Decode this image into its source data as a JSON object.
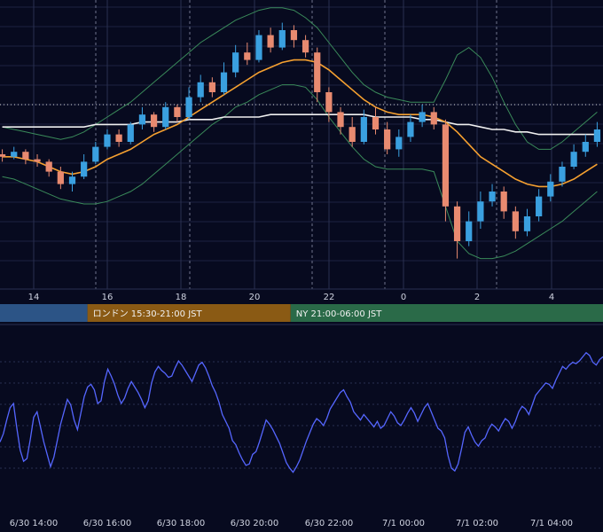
{
  "chart_data": [
    {
      "type": "candlestick",
      "x_ticks": [
        "14",
        "16",
        "18",
        "20",
        "22",
        "0",
        "2",
        "4"
      ],
      "y_range": [
        0,
        100
      ],
      "overlays": [
        "bollinger_bands",
        "moving_average_short",
        "moving_average_long"
      ],
      "candles": [
        [
          10,
          45,
          44,
          47,
          42
        ],
        [
          11,
          44,
          46,
          48,
          43
        ],
        [
          12,
          46,
          43,
          47,
          41
        ],
        [
          13,
          43,
          42,
          45,
          40
        ],
        [
          14,
          42,
          38,
          43,
          36
        ],
        [
          15,
          38,
          33,
          40,
          31
        ],
        [
          16,
          33,
          36,
          38,
          30
        ],
        [
          17,
          36,
          42,
          45,
          35
        ],
        [
          18,
          42,
          48,
          50,
          41
        ],
        [
          19,
          48,
          53,
          55,
          47
        ],
        [
          20,
          53,
          50,
          55,
          48
        ],
        [
          21,
          50,
          57,
          58,
          49
        ],
        [
          22,
          57,
          61,
          64,
          55
        ],
        [
          23,
          61,
          56,
          62,
          54
        ],
        [
          24,
          56,
          64,
          66,
          55
        ],
        [
          25,
          64,
          60,
          65,
          58
        ],
        [
          26,
          60,
          68,
          72,
          59
        ],
        [
          27,
          68,
          74,
          77,
          66
        ],
        [
          28,
          74,
          70,
          76,
          68
        ],
        [
          29,
          70,
          78,
          82,
          69
        ],
        [
          30,
          78,
          86,
          89,
          76
        ],
        [
          31,
          86,
          83,
          90,
          81
        ],
        [
          32,
          83,
          93,
          95,
          82
        ],
        [
          33,
          93,
          88,
          96,
          86
        ],
        [
          34,
          88,
          95,
          98,
          87
        ],
        [
          35,
          95,
          91,
          97,
          88
        ],
        [
          36,
          91,
          86,
          93,
          84
        ],
        [
          37,
          86,
          70,
          88,
          66
        ],
        [
          38,
          70,
          62,
          72,
          58
        ],
        [
          39,
          62,
          56,
          64,
          53
        ],
        [
          40,
          56,
          50,
          60,
          48
        ],
        [
          41,
          50,
          60,
          63,
          49
        ],
        [
          42,
          60,
          55,
          64,
          53
        ],
        [
          43,
          55,
          47,
          58,
          45
        ],
        [
          44,
          47,
          52,
          55,
          44
        ],
        [
          45,
          52,
          58,
          61,
          50
        ],
        [
          46,
          58,
          62,
          65,
          56
        ],
        [
          47,
          62,
          57,
          64,
          55
        ],
        [
          48,
          57,
          24,
          59,
          18
        ],
        [
          49,
          24,
          10,
          26,
          3
        ],
        [
          50,
          10,
          18,
          22,
          8
        ],
        [
          51,
          18,
          26,
          30,
          15
        ],
        [
          52,
          26,
          30,
          33,
          24
        ],
        [
          53,
          30,
          22,
          32,
          19
        ],
        [
          54,
          22,
          14,
          24,
          11
        ],
        [
          55,
          14,
          20,
          23,
          12
        ],
        [
          56,
          20,
          28,
          31,
          18
        ],
        [
          57,
          28,
          34,
          37,
          26
        ],
        [
          58,
          34,
          40,
          42,
          32
        ],
        [
          59,
          40,
          46,
          49,
          39
        ],
        [
          60,
          46,
          50,
          53,
          44
        ],
        [
          61,
          50,
          55,
          58,
          48
        ]
      ],
      "ma_short": [
        44,
        44,
        43,
        42,
        40,
        38,
        37,
        38,
        40,
        43,
        45,
        47,
        50,
        53,
        55,
        57,
        60,
        63,
        66,
        69,
        72,
        75,
        78,
        80,
        82,
        83,
        83,
        82,
        79,
        75,
        71,
        67,
        64,
        62,
        61,
        61,
        61,
        60,
        58,
        54,
        49,
        44,
        41,
        38,
        35,
        33,
        32,
        32,
        33,
        35,
        38,
        41
      ],
      "ma_long": [
        56,
        56,
        56,
        56,
        56,
        56,
        56,
        56,
        57,
        57,
        57,
        57,
        58,
        58,
        58,
        58,
        59,
        59,
        59,
        60,
        60,
        60,
        60,
        61,
        61,
        61,
        61,
        61,
        61,
        61,
        61,
        61,
        60,
        60,
        60,
        60,
        59,
        59,
        58,
        57,
        57,
        56,
        55,
        55,
        54,
        54,
        53,
        53,
        53,
        53,
        53,
        53
      ],
      "bb_upper": [
        56,
        55,
        54,
        53,
        52,
        51,
        52,
        54,
        57,
        60,
        63,
        66,
        70,
        74,
        78,
        82,
        86,
        90,
        93,
        96,
        99,
        101,
        103,
        104,
        104,
        103,
        100,
        96,
        90,
        84,
        78,
        73,
        70,
        68,
        67,
        66,
        66,
        66,
        75,
        85,
        88,
        84,
        76,
        66,
        57,
        50,
        47,
        47,
        50,
        54,
        58,
        62
      ],
      "bb_lower": [
        36,
        35,
        33,
        31,
        29,
        27,
        26,
        25,
        25,
        26,
        28,
        30,
        33,
        37,
        41,
        45,
        49,
        53,
        57,
        60,
        64,
        66,
        69,
        71,
        73,
        73,
        72,
        67,
        60,
        54,
        48,
        43,
        40,
        39,
        39,
        39,
        39,
        38,
        24,
        10,
        5,
        3,
        3,
        4,
        6,
        9,
        12,
        15,
        18,
        22,
        26,
        30
      ],
      "session_bar": {
        "sessions": [
          {
            "label": "",
            "color": "#2c5486",
            "start_frac": 0.0,
            "end_frac": 0.145
          },
          {
            "label": "ロンドン 15:30-21:00 JST",
            "color": "#8a5a14",
            "start_frac": 0.145,
            "end_frac": 0.482
          },
          {
            "label": "NY 21:00-06:00 JST",
            "color": "#2a6a48",
            "start_frac": 0.482,
            "end_frac": 1.0
          }
        ]
      }
    },
    {
      "type": "line",
      "x_ticks": [
        "6/30 14:00",
        "6/30 16:00",
        "6/30 18:00",
        "6/30 20:00",
        "6/30 22:00",
        "7/1 00:00",
        "7/1 02:00",
        "7/1 04:00"
      ],
      "y_range": [
        0,
        100
      ],
      "series": [
        {
          "color": "#5566ff",
          "values": [
            30,
            36,
            46,
            55,
            58,
            40,
            24,
            16,
            18,
            32,
            48,
            52,
            41,
            30,
            21,
            12,
            19,
            31,
            43,
            52,
            61,
            57,
            46,
            39,
            51,
            63,
            70,
            72,
            68,
            58,
            60,
            74,
            83,
            78,
            72,
            64,
            58,
            62,
            69,
            74,
            70,
            66,
            61,
            55,
            60,
            73,
            81,
            85,
            82,
            80,
            77,
            78,
            84,
            89,
            86,
            82,
            78,
            74,
            80,
            86,
            88,
            84,
            78,
            71,
            66,
            59,
            50,
            45,
            40,
            31,
            28,
            22,
            17,
            13,
            14,
            21,
            23,
            30,
            38,
            46,
            43,
            39,
            34,
            29,
            22,
            15,
            11,
            8,
            12,
            17,
            24,
            31,
            37,
            43,
            47,
            45,
            42,
            47,
            54,
            58,
            62,
            66,
            68,
            63,
            59,
            52,
            49,
            46,
            50,
            47,
            44,
            41,
            45,
            40,
            42,
            47,
            52,
            49,
            44,
            42,
            46,
            51,
            55,
            51,
            45,
            50,
            55,
            58,
            52,
            46,
            40,
            38,
            33,
            20,
            11,
            9,
            14,
            25,
            37,
            41,
            35,
            30,
            27,
            31,
            33,
            39,
            43,
            41,
            38,
            43,
            47,
            45,
            40,
            45,
            52,
            56,
            54,
            50,
            57,
            64,
            67,
            70,
            73,
            72,
            69,
            75,
            80,
            85,
            83,
            86,
            88,
            87,
            89,
            92,
            95,
            93,
            88,
            86,
            90,
            92
          ]
        }
      ]
    }
  ]
}
